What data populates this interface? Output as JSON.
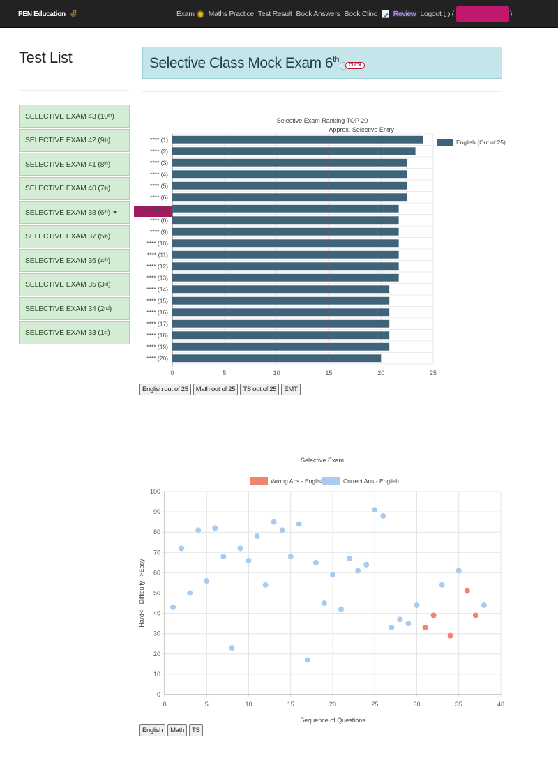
{
  "navbar": {
    "brand": "PEN Education",
    "brand_icon": "hat-icon",
    "items": [
      {
        "label": "Exam",
        "icon": "exam-icon"
      },
      {
        "label": "Maths Practice"
      },
      {
        "label": "Test Result"
      },
      {
        "label": "Book Answers"
      },
      {
        "label": "Book Clinc"
      },
      {
        "label": "Review",
        "icon": "edit-icon"
      },
      {
        "label": "Logout",
        "icon": "power-icon"
      }
    ],
    "user_prefix": "(",
    "user_suffix": ")"
  },
  "sidebar": {
    "title": "Test List",
    "items": [
      {
        "label": "SELECTIVE EXAM 43 (10",
        "sup": "th",
        "close": ")"
      },
      {
        "label": "SELECTIVE EXAM 42 (9",
        "sup": "th",
        "close": ")"
      },
      {
        "label": "SELECTIVE EXAM 41 (8",
        "sup": "th",
        "close": ")"
      },
      {
        "label": "SELECTIVE EXAM 40 (7",
        "sup": "th",
        "close": ")"
      },
      {
        "label": "SELECTIVE EXAM 38 (6",
        "sup": "th",
        "close": ")",
        "pointer": "☚"
      },
      {
        "label": "SELECTIVE EXAM 37 (5",
        "sup": "th",
        "close": ")"
      },
      {
        "label": "SELECTIVE EXAM 36 (4",
        "sup": "th",
        "close": ")"
      },
      {
        "label": "SELECTIVE EXAM 35 (3",
        "sup": "rd",
        "close": ")"
      },
      {
        "label": "SELECTIVE EXAM 34 (2",
        "sup": "nd",
        "close": ")"
      },
      {
        "label": "SELECTIVE EXAM 33 (1",
        "sup": "st",
        "close": ")"
      }
    ]
  },
  "main": {
    "title": "Selective Class Mock Exam 6",
    "title_sup": "th",
    "click_label": "CLICK"
  },
  "chart_buttons_1": [
    "English out of 25",
    "Math out of 25",
    "TS out of 25",
    "EMT"
  ],
  "chart_buttons_2": [
    "English",
    "Math",
    "TS"
  ],
  "chart_data": [
    {
      "type": "bar",
      "orientation": "horizontal",
      "title": "Selective Exam Ranking TOP 20",
      "annotation": {
        "label": "Approx. Selective Entry",
        "value": 15,
        "color": "#e04848"
      },
      "categories": [
        "**** (1)",
        "**** (2)",
        "**** (3)",
        "**** (4)",
        "**** (5)",
        "**** (6)",
        "Carolvi (7)",
        "**** (8)",
        "**** (9)",
        "**** (10)",
        "**** (11)",
        "**** (12)",
        "**** (13)",
        "**** (14)",
        "**** (15)",
        "**** (16)",
        "**** (17)",
        "**** (18)",
        "**** (19)",
        "**** (20)"
      ],
      "series": [
        {
          "name": "English (Out of 25)",
          "color": "#3f6378",
          "values": [
            24,
            23.3,
            22.5,
            22.5,
            22.5,
            22.5,
            21.7,
            21.7,
            21.7,
            21.7,
            21.7,
            21.7,
            21.7,
            20.8,
            20.8,
            20.8,
            20.8,
            20.8,
            20.8,
            20
          ]
        }
      ],
      "xlim": [
        0,
        25
      ],
      "xticks": [
        0,
        5,
        10,
        15,
        20,
        25
      ],
      "legend": "right"
    },
    {
      "type": "scatter",
      "title": "Selective Exam",
      "xlabel": "Sequence of Questions",
      "ylabel": "Hard<-- Difficulty-->Easy",
      "xlim": [
        0,
        40
      ],
      "ylim": [
        0,
        100
      ],
      "xticks": [
        0,
        5,
        10,
        15,
        20,
        25,
        30,
        35,
        40
      ],
      "yticks": [
        0,
        10,
        20,
        30,
        40,
        50,
        60,
        70,
        80,
        90,
        100
      ],
      "legend": "top",
      "series": [
        {
          "name": "Wrong Ans - English",
          "color": "#f08470",
          "points": [
            [
              31,
              33
            ],
            [
              32,
              39
            ],
            [
              34,
              29
            ],
            [
              36,
              51
            ],
            [
              37,
              39
            ]
          ]
        },
        {
          "name": "Correct Ans - English",
          "color": "#a8ccef",
          "points": [
            [
              1,
              43
            ],
            [
              2,
              72
            ],
            [
              3,
              50
            ],
            [
              4,
              81
            ],
            [
              5,
              56
            ],
            [
              6,
              82
            ],
            [
              7,
              68
            ],
            [
              8,
              23
            ],
            [
              9,
              72
            ],
            [
              10,
              66
            ],
            [
              11,
              78
            ],
            [
              12,
              54
            ],
            [
              13,
              85
            ],
            [
              14,
              81
            ],
            [
              15,
              68
            ],
            [
              16,
              84
            ],
            [
              17,
              17
            ],
            [
              18,
              65
            ],
            [
              19,
              45
            ],
            [
              20,
              59
            ],
            [
              21,
              42
            ],
            [
              22,
              67
            ],
            [
              23,
              61
            ],
            [
              24,
              64
            ],
            [
              25,
              91
            ],
            [
              26,
              88
            ],
            [
              27,
              33
            ],
            [
              28,
              37
            ],
            [
              29,
              35
            ],
            [
              30,
              44
            ],
            [
              33,
              54
            ],
            [
              35,
              61
            ],
            [
              38,
              44
            ]
          ]
        }
      ]
    }
  ]
}
